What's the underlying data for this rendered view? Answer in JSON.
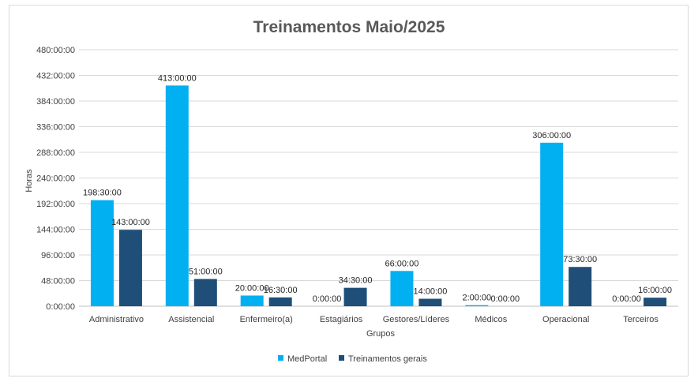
{
  "chart_data": {
    "type": "bar",
    "title": "Treinamentos Maio/2025",
    "xlabel": "Grupos",
    "ylabel": "Horas",
    "ylim": [
      0,
      480
    ],
    "yticks": [
      "0:00:00",
      "48:00:00",
      "96:00:00",
      "144:00:00",
      "192:00:00",
      "240:00:00",
      "288:00:00",
      "336:00:00",
      "384:00:00",
      "432:00:00",
      "480:00:00"
    ],
    "categories": [
      "Administrativo",
      "Assistencial",
      "Enfermeiro(a)",
      "Estagiários",
      "Gestores/Líderes",
      "Médicos",
      "Operacional",
      "Terceiros"
    ],
    "series": [
      {
        "name": "MedPortal",
        "color": "#00b0f0",
        "values": [
          198.5,
          413,
          20,
          0,
          66,
          2,
          306,
          0
        ],
        "labels": [
          "198:30:00",
          "413:00:00",
          "20:00:00",
          "0:00:00",
          "66:00:00",
          "2:00:00",
          "306:00:00",
          "0:00:00"
        ]
      },
      {
        "name": "Treinamentos gerais",
        "color": "#1f4e79",
        "values": [
          143,
          51,
          16.5,
          34.5,
          14,
          0,
          73.5,
          16
        ],
        "labels": [
          "143:00:00",
          "51:00:00",
          "16:30:00",
          "34:30:00",
          "14:00:00",
          "0:00:00",
          "73:30:00",
          "16:00:00"
        ]
      }
    ],
    "grid": true,
    "legend": "bottom"
  }
}
